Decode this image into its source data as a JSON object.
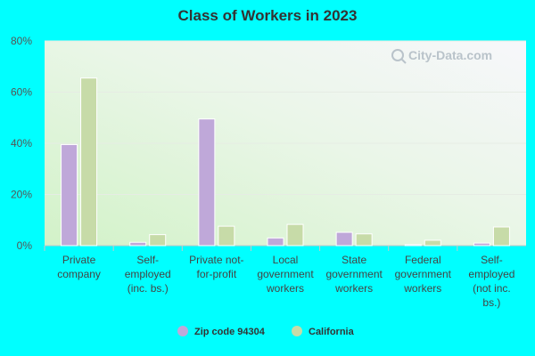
{
  "chart_data": {
    "type": "bar",
    "title": "Class of Workers in 2023",
    "xlabel": "",
    "ylabel": "",
    "ylim": [
      0,
      80
    ],
    "yticks": [
      "0%",
      "20%",
      "40%",
      "60%",
      "80%"
    ],
    "ytick_values": [
      0,
      20,
      40,
      60,
      80
    ],
    "categories": [
      [
        "Private",
        "company"
      ],
      [
        "Self-",
        "employed",
        "(inc. bs.)"
      ],
      [
        "Private not-",
        "for-profit"
      ],
      [
        "Local",
        "government",
        "workers"
      ],
      [
        "State",
        "government",
        "workers"
      ],
      [
        "Federal",
        "government",
        "workers"
      ],
      [
        "Self-",
        "employed",
        "(not inc.",
        "bs.)"
      ]
    ],
    "series": [
      {
        "name": "Zip code 94304",
        "color": "#bfa8d9",
        "values": [
          39.5,
          1.3,
          49.5,
          3.0,
          5.2,
          0.4,
          1.0
        ]
      },
      {
        "name": "California",
        "color": "#c7dba8",
        "values": [
          65.5,
          4.3,
          7.6,
          8.3,
          4.6,
          2.1,
          7.3
        ]
      }
    ],
    "grid": true,
    "legend": "bottom-center"
  },
  "watermark": "City-Data.com",
  "colors": {
    "background": "#00ffff"
  }
}
